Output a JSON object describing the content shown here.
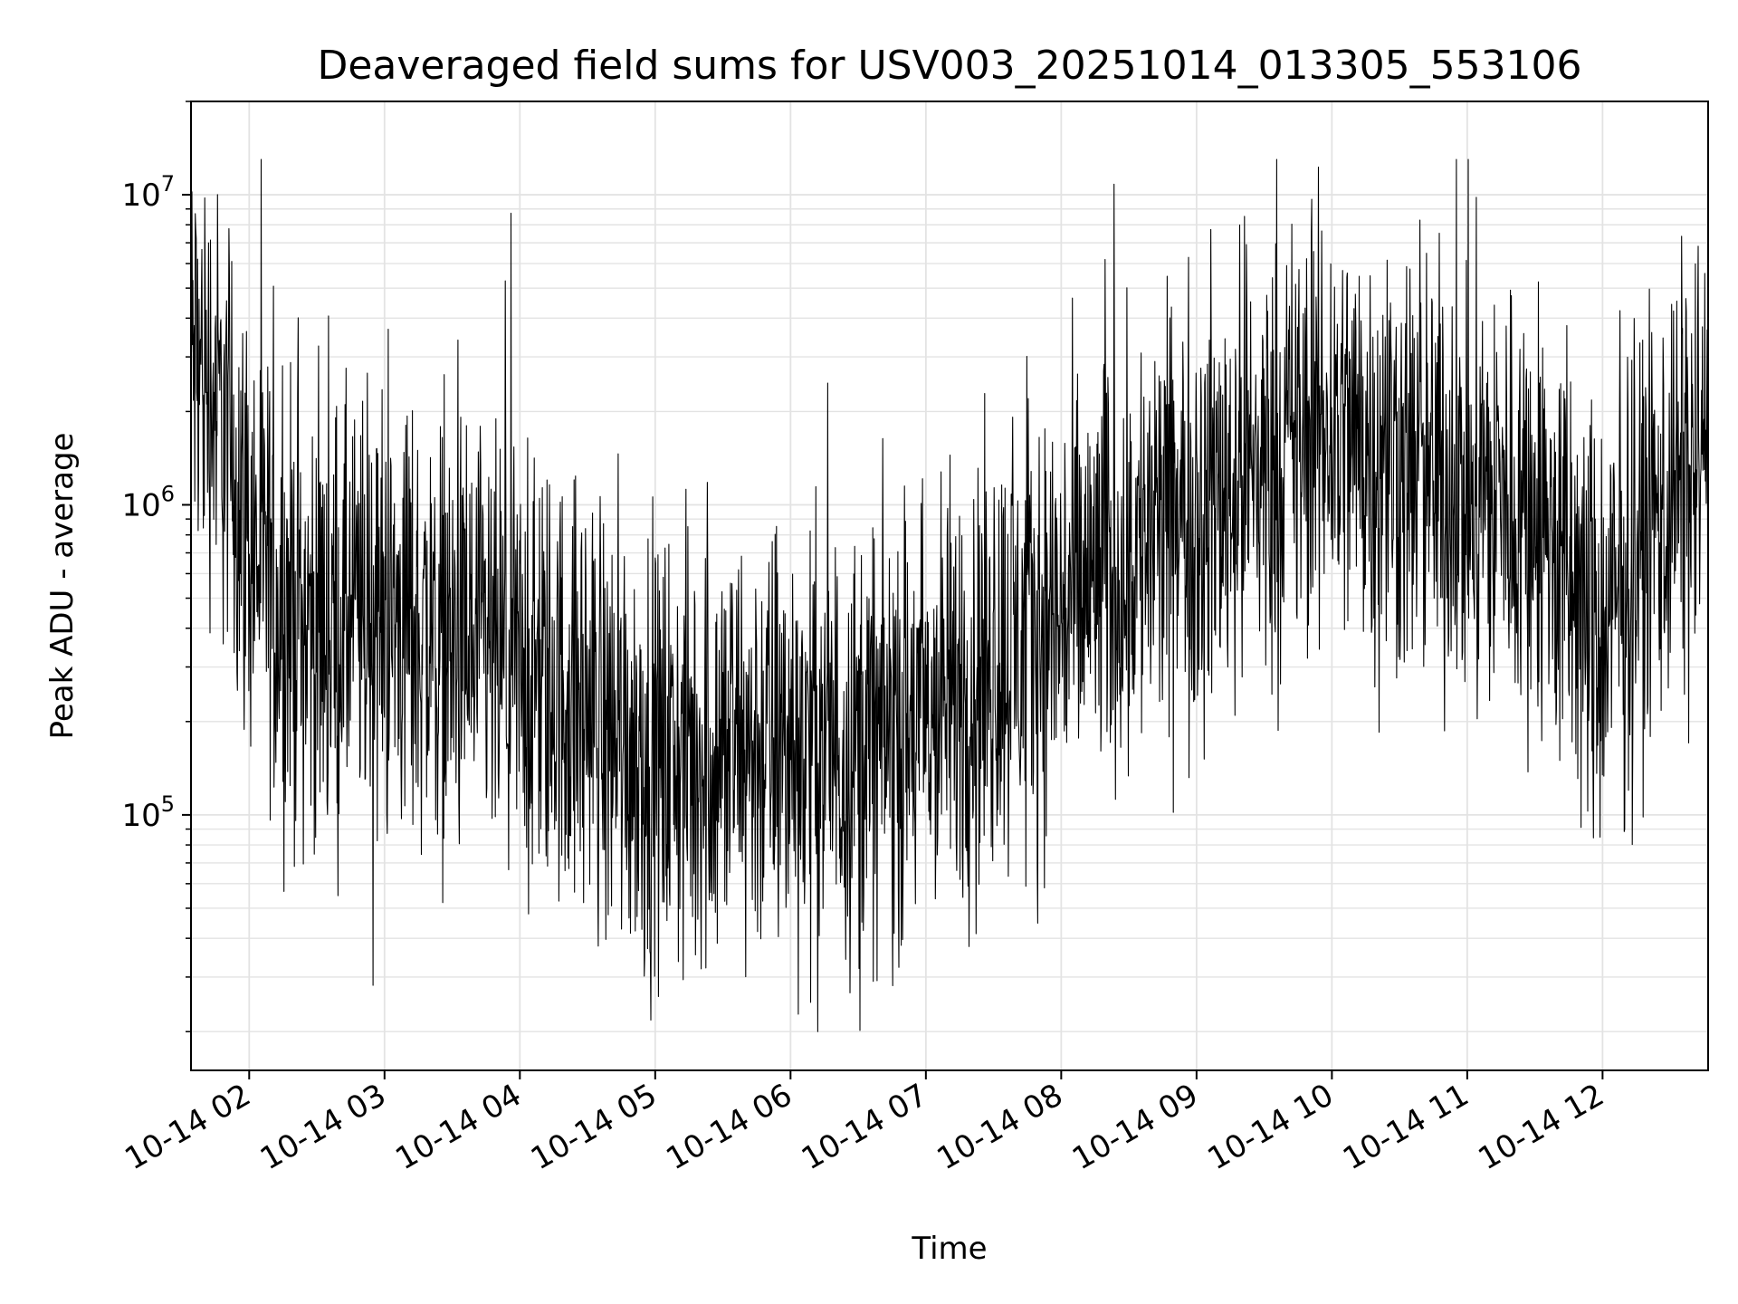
{
  "chart_data": {
    "type": "line",
    "title": "Deaveraged field sums for USV003_20251014_013305_553106",
    "xlabel": "Time",
    "ylabel": "Peak ADU - average",
    "y_scale": "log",
    "ylim": [
      15000,
      20000000
    ],
    "x_range_hours": [
      1.57,
      12.78
    ],
    "grid": true,
    "line_color": "#000000",
    "x_ticks": [
      {
        "hour": 2,
        "label": "10-14 02"
      },
      {
        "hour": 3,
        "label": "10-14 03"
      },
      {
        "hour": 4,
        "label": "10-14 04"
      },
      {
        "hour": 5,
        "label": "10-14 05"
      },
      {
        "hour": 6,
        "label": "10-14 06"
      },
      {
        "hour": 7,
        "label": "10-14 07"
      },
      {
        "hour": 8,
        "label": "10-14 08"
      },
      {
        "hour": 9,
        "label": "10-14 09"
      },
      {
        "hour": 10,
        "label": "10-14 10"
      },
      {
        "hour": 11,
        "label": "10-14 11"
      },
      {
        "hour": 12,
        "label": "10-14 12"
      }
    ],
    "y_ticks": [
      {
        "value": 100000,
        "base": "10",
        "exp": "5"
      },
      {
        "value": 1000000,
        "base": "10",
        "exp": "6"
      },
      {
        "value": 10000000,
        "base": "10",
        "exp": "7"
      }
    ],
    "series": [
      {
        "name": "deaveraged field sums",
        "trend": {
          "hours": [
            1.57,
            1.7,
            1.85,
            2.0,
            2.2,
            2.5,
            3.0,
            3.5,
            4.0,
            4.5,
            5.0,
            5.5,
            6.0,
            6.5,
            7.0,
            7.5,
            8.0,
            8.5,
            9.0,
            9.5,
            10.0,
            10.5,
            11.0,
            11.5,
            11.8,
            12.0,
            12.3,
            12.78
          ],
          "values": [
            3000000,
            2500000,
            1600000,
            800000,
            500000,
            400000,
            450000,
            350000,
            280000,
            230000,
            150000,
            160000,
            170000,
            170000,
            200000,
            320000,
            450000,
            700000,
            1000000,
            1400000,
            1800000,
            1400000,
            1100000,
            1000000,
            500000,
            350000,
            800000,
            1600000
          ]
        },
        "scatter_decades": 1.3,
        "min_value": 20000,
        "max_value": 13000000
      }
    ]
  }
}
